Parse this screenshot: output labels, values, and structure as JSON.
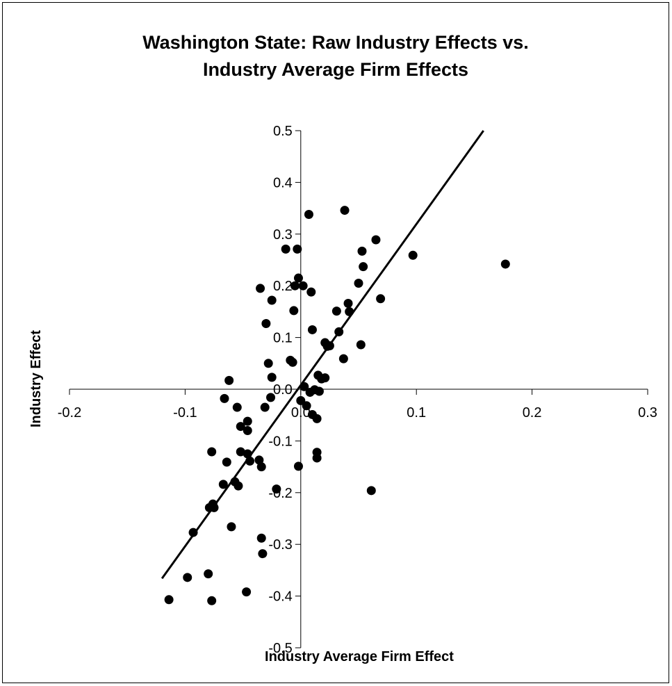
{
  "chart_data": {
    "type": "scatter",
    "title_lines": [
      "Washington State: Raw Industry Effects vs.",
      "Industry Average Firm Effects"
    ],
    "xlabel": "Industry Average Firm Effect",
    "ylabel": "Industry Effect",
    "xlim": [
      -0.2,
      0.3
    ],
    "ylim": [
      -0.5,
      0.5
    ],
    "x_ticks": [
      -0.2,
      -0.1,
      0.0,
      0.1,
      0.2,
      0.3
    ],
    "x_tick_labels": [
      "-0.2",
      "-0.1",
      "0.0",
      "0.1",
      "0.2",
      "0.3"
    ],
    "y_ticks": [
      -0.5,
      -0.4,
      -0.3,
      -0.2,
      -0.1,
      0.0,
      0.1,
      0.2,
      0.3,
      0.4,
      0.5
    ],
    "y_tick_labels": [
      "-0.5",
      "-0.4",
      "-0.3",
      "-0.2",
      "-0.1",
      "0.0",
      "0.1",
      "0.2",
      "0.3",
      "0.4",
      "0.5"
    ],
    "grid": false,
    "legend": "none",
    "marker_color": "#000000",
    "fit_line": {
      "x": [
        -0.12,
        0.158
      ],
      "y": [
        -0.366,
        0.5
      ]
    },
    "points": [
      [
        -0.114,
        -0.407
      ],
      [
        -0.098,
        -0.364
      ],
      [
        -0.093,
        -0.277
      ],
      [
        -0.08,
        -0.357
      ],
      [
        -0.077,
        -0.409
      ],
      [
        -0.079,
        -0.229
      ],
      [
        -0.076,
        -0.222
      ],
      [
        -0.075,
        -0.229
      ],
      [
        -0.077,
        -0.121
      ],
      [
        -0.067,
        -0.184
      ],
      [
        -0.064,
        -0.141
      ],
      [
        -0.06,
        -0.266
      ],
      [
        -0.057,
        -0.179
      ],
      [
        -0.054,
        -0.187
      ],
      [
        -0.066,
        -0.018
      ],
      [
        -0.062,
        0.017
      ],
      [
        -0.055,
        -0.035
      ],
      [
        -0.052,
        -0.072
      ],
      [
        -0.052,
        -0.121
      ],
      [
        -0.046,
        -0.062
      ],
      [
        -0.046,
        -0.08
      ],
      [
        -0.044,
        -0.139
      ],
      [
        -0.046,
        -0.125
      ],
      [
        -0.047,
        -0.392
      ],
      [
        -0.036,
        -0.137
      ],
      [
        -0.034,
        -0.15
      ],
      [
        -0.034,
        -0.288
      ],
      [
        -0.033,
        -0.318
      ],
      [
        -0.031,
        -0.035
      ],
      [
        -0.03,
        0.127
      ],
      [
        -0.025,
        0.172
      ],
      [
        -0.028,
        0.05
      ],
      [
        -0.025,
        0.023
      ],
      [
        -0.026,
        -0.016
      ],
      [
        -0.035,
        0.195
      ],
      [
        -0.021,
        -0.193
      ],
      [
        -0.013,
        0.271
      ],
      [
        -0.009,
        0.056
      ],
      [
        -0.007,
        0.052
      ],
      [
        -0.006,
        0.152
      ],
      [
        -0.005,
        0.2
      ],
      [
        -0.002,
        0.215
      ],
      [
        -0.003,
        0.271
      ],
      [
        0.002,
        0.2
      ],
      [
        0.0,
        -0.022
      ],
      [
        -0.002,
        -0.149
      ],
      [
        0.003,
        0.005
      ],
      [
        0.005,
        -0.032
      ],
      [
        0.007,
        0.338
      ],
      [
        0.009,
        0.188
      ],
      [
        0.01,
        0.115
      ],
      [
        0.008,
        -0.006
      ],
      [
        0.01,
        -0.049
      ],
      [
        0.012,
        -0.001
      ],
      [
        0.014,
        -0.057
      ],
      [
        0.014,
        -0.122
      ],
      [
        0.014,
        -0.133
      ],
      [
        0.015,
        0.027
      ],
      [
        0.018,
        0.02
      ],
      [
        0.021,
        0.022
      ],
      [
        0.016,
        -0.004
      ],
      [
        0.021,
        0.09
      ],
      [
        0.023,
        0.083
      ],
      [
        0.025,
        0.084
      ],
      [
        0.031,
        0.151
      ],
      [
        0.033,
        0.111
      ],
      [
        0.037,
        0.059
      ],
      [
        0.041,
        0.166
      ],
      [
        0.042,
        0.15
      ],
      [
        0.05,
        0.205
      ],
      [
        0.052,
        0.086
      ],
      [
        0.053,
        0.267
      ],
      [
        0.054,
        0.237
      ],
      [
        0.038,
        0.346
      ],
      [
        0.065,
        0.289
      ],
      [
        0.069,
        0.175
      ],
      [
        0.097,
        0.259
      ],
      [
        0.061,
        -0.196
      ],
      [
        0.177,
        0.242
      ]
    ]
  }
}
